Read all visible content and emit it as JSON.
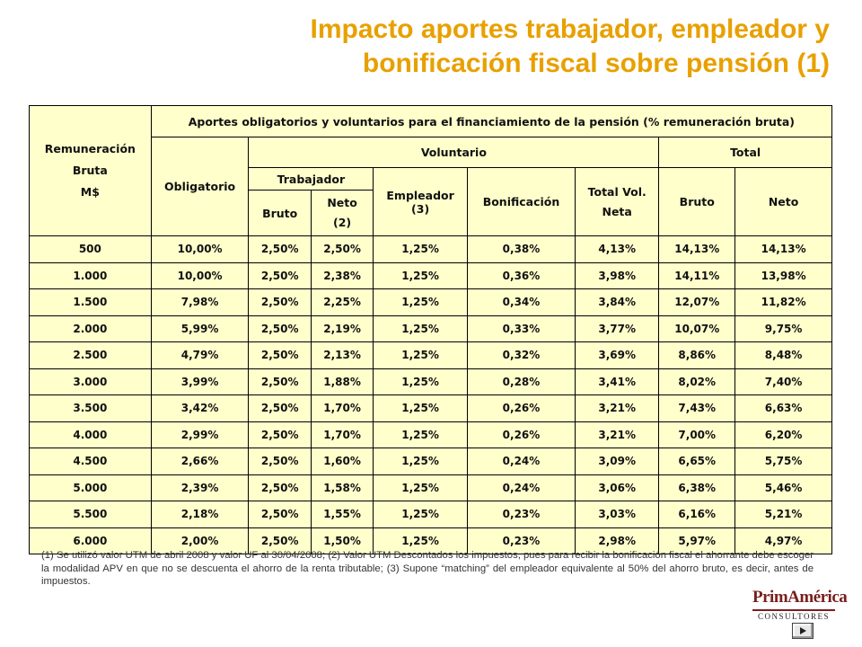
{
  "title": {
    "line1": "Impacto aportes trabajador, empleador y",
    "line2": "bonificación fiscal sobre pensión (1)"
  },
  "table": {
    "header": {
      "rem_line1": "Remuneración",
      "rem_line2": "Bruta",
      "rem_line3": "M$",
      "aportes": "Aportes obligatorios y voluntarios para el financiamiento de la pensión (% remuneración bruta)",
      "obligatorio": "Obligatorio",
      "voluntario": "Voluntario",
      "total": "Total",
      "trabajador": "Trabajador",
      "empleador": "Empleador",
      "empleador_note": "(3)",
      "bonificacion": "Bonificación",
      "total_vol_1": "Total Vol.",
      "total_vol_2": "Neta",
      "bruto": "Bruto",
      "neto": "Neto",
      "neto_note": "(2)",
      "total_bruto": "Bruto",
      "total_neto": "Neto"
    },
    "rows": [
      [
        "500",
        "10,00%",
        "2,50%",
        "2,50%",
        "1,25%",
        "0,38%",
        "4,13%",
        "14,13%",
        "14,13%"
      ],
      [
        "1.000",
        "10,00%",
        "2,50%",
        "2,38%",
        "1,25%",
        "0,36%",
        "3,98%",
        "14,11%",
        "13,98%"
      ],
      [
        "1.500",
        "7,98%",
        "2,50%",
        "2,25%",
        "1,25%",
        "0,34%",
        "3,84%",
        "12,07%",
        "11,82%"
      ],
      [
        "2.000",
        "5,99%",
        "2,50%",
        "2,19%",
        "1,25%",
        "0,33%",
        "3,77%",
        "10,07%",
        "9,75%"
      ],
      [
        "2.500",
        "4,79%",
        "2,50%",
        "2,13%",
        "1,25%",
        "0,32%",
        "3,69%",
        "8,86%",
        "8,48%"
      ],
      [
        "3.000",
        "3,99%",
        "2,50%",
        "1,88%",
        "1,25%",
        "0,28%",
        "3,41%",
        "8,02%",
        "7,40%"
      ],
      [
        "3.500",
        "3,42%",
        "2,50%",
        "1,70%",
        "1,25%",
        "0,26%",
        "3,21%",
        "7,43%",
        "6,63%"
      ],
      [
        "4.000",
        "2,99%",
        "2,50%",
        "1,70%",
        "1,25%",
        "0,26%",
        "3,21%",
        "7,00%",
        "6,20%"
      ],
      [
        "4.500",
        "2,66%",
        "2,50%",
        "1,60%",
        "1,25%",
        "0,24%",
        "3,09%",
        "6,65%",
        "5,75%"
      ],
      [
        "5.000",
        "2,39%",
        "2,50%",
        "1,58%",
        "1,25%",
        "0,24%",
        "3,06%",
        "6,38%",
        "5,46%"
      ],
      [
        "5.500",
        "2,18%",
        "2,50%",
        "1,55%",
        "1,25%",
        "0,23%",
        "3,03%",
        "6,16%",
        "5,21%"
      ],
      [
        "6.000",
        "2,00%",
        "2,50%",
        "1,50%",
        "1,25%",
        "0,23%",
        "2,98%",
        "5,97%",
        "4,97%"
      ]
    ]
  },
  "footnote": "(1) Se utilizó valor UTM de abril 2008 y valor UF al 30/04/2008; (2) Valor UTM Descontados los impuestos, pues para recibir la bonificación fiscal el ahorrante debe escoger la modalidad APV en que no se descuenta el ahorro de la renta tributable; (3) Supone “matching” del empleador equivalente al 50% del ahorro bruto, es decir, antes de impuestos.",
  "logo": {
    "name": "PrimAmérica",
    "sub": "CONSULTORES"
  },
  "nav": {
    "next_icon": "play-next-icon"
  },
  "colors": {
    "title": "#E8A000",
    "table_bg": "#FFFFCC",
    "logo": "#7A1E1E"
  }
}
